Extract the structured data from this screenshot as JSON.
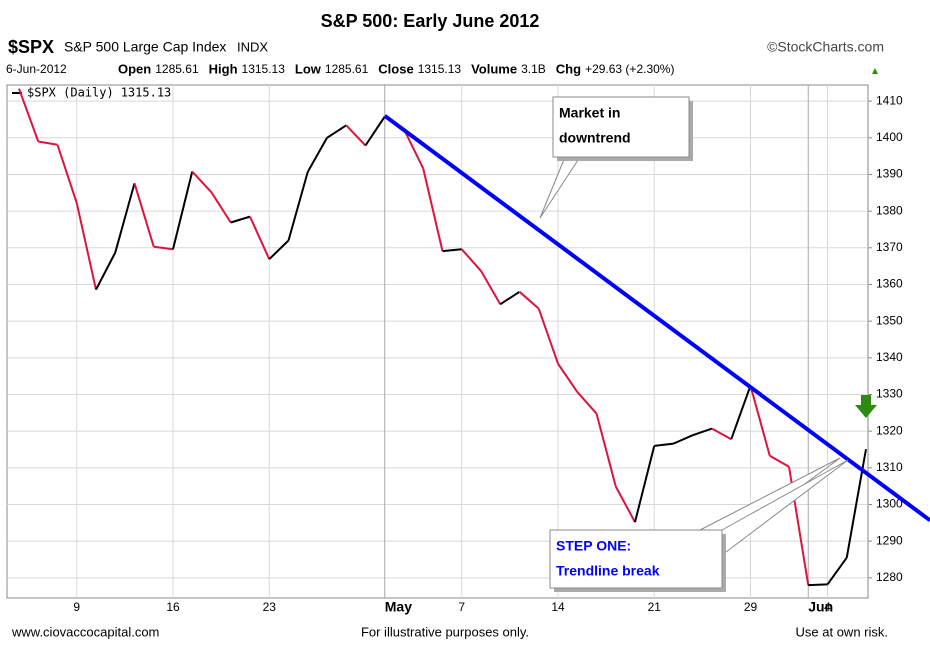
{
  "chart_data": {
    "type": "line",
    "title": "S&P 500:  Early June 2012",
    "header": {
      "symbol": "$SPX",
      "name": "S&P 500 Large Cap Index",
      "exchange": "INDX",
      "source": "©StockCharts.com",
      "date": "6-Jun-2012",
      "stats": [
        {
          "label": "Open",
          "value": "1285.61"
        },
        {
          "label": "High",
          "value": "1315.13"
        },
        {
          "label": "Low",
          "value": "1285.61"
        },
        {
          "label": "Close",
          "value": "1315.13"
        },
        {
          "label": "Volume",
          "value": "3.1B"
        },
        {
          "label": "Chg",
          "value": "+29.63 (+2.30%)"
        }
      ]
    },
    "legend": {
      "name": "$SPX (Daily)",
      "last": "1315.13"
    },
    "categories": [
      null,
      null,
      null,
      "9",
      null,
      null,
      null,
      null,
      "16",
      null,
      null,
      null,
      null,
      "23",
      null,
      null,
      null,
      null,
      null,
      "May",
      null,
      null,
      null,
      "7",
      null,
      null,
      null,
      null,
      "14",
      null,
      null,
      null,
      null,
      "21",
      null,
      null,
      null,
      null,
      "29",
      null,
      null,
      "Jun",
      "4",
      null,
      null
    ],
    "series": [
      {
        "name": "$SPX",
        "up_color": "#000000",
        "down_color": "#dc143c",
        "values": [
          1413.4,
          1399.0,
          1398.1,
          1382.2,
          1358.6,
          1368.7,
          1387.6,
          1370.3,
          1369.6,
          1390.8,
          1385.1,
          1376.9,
          1378.5,
          1366.9,
          1372.0,
          1390.7,
          1400.0,
          1403.4,
          1397.9,
          1405.8,
          1402.3,
          1391.6,
          1369.1,
          1369.6,
          1363.7,
          1354.6,
          1358.0,
          1353.4,
          1338.4,
          1330.7,
          1324.8,
          1304.9,
          1295.2,
          1316.0,
          1316.6,
          1318.9,
          1320.7,
          1317.8,
          1332.4,
          1313.3,
          1310.3,
          1278.0,
          1278.2,
          1285.5,
          1315.1
        ]
      }
    ],
    "trendline": {
      "color": "#0000ff",
      "points": [
        [
          19,
          1406
        ],
        [
          38,
          1332
        ]
      ]
    },
    "ylim": [
      1274.5,
      1414.4
    ],
    "yticks": [
      1280,
      1290,
      1300,
      1310,
      1320,
      1330,
      1340,
      1350,
      1360,
      1370,
      1380,
      1390,
      1400,
      1410
    ],
    "grid": true,
    "annotations": [
      {
        "lines": [
          "Market in",
          "downtrend"
        ],
        "color": "#000000"
      },
      {
        "lines": [
          "STEP ONE:",
          "Trendline break"
        ],
        "color": "#0000ff"
      }
    ],
    "marker_color": "#2e8b12",
    "footer": {
      "left": "www.ciovaccocapital.com",
      "center": "For illustrative purposes only.",
      "right": "Use at own risk."
    }
  }
}
